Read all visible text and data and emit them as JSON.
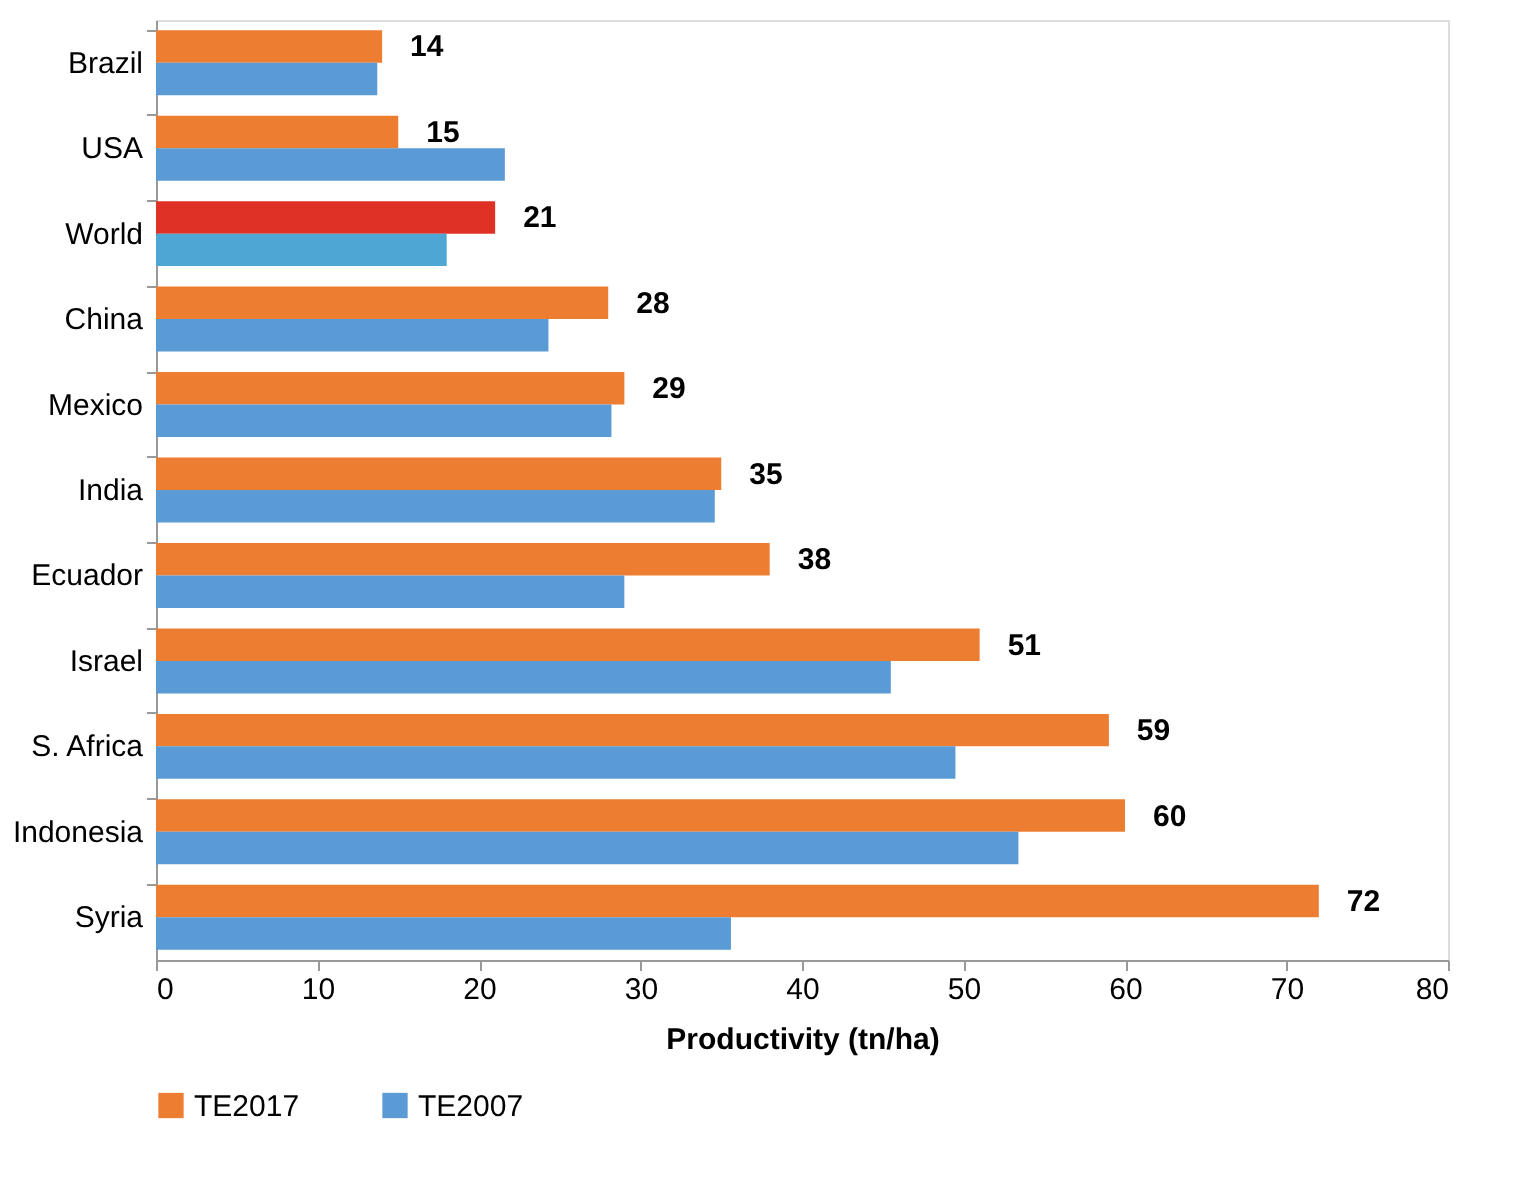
{
  "chart_data": {
    "type": "bar",
    "orientation": "horizontal",
    "xlabel": "Productivity (tn/ha)",
    "categories": [
      "Brazil",
      "USA",
      "World",
      "China",
      "Mexico",
      "India",
      "Ecuador",
      "Israel",
      "S. Africa",
      "Indonesia",
      "Syria"
    ],
    "series": [
      {
        "name": "TE2017",
        "color": "#ed7d31",
        "colors": [
          "#ed7d31",
          "#ed7d31",
          "#e03127",
          "#ed7d31",
          "#ed7d31",
          "#ed7d31",
          "#ed7d31",
          "#ed7d31",
          "#ed7d31",
          "#ed7d31",
          "#ed7d31"
        ],
        "values": [
          14,
          15,
          21,
          28,
          29,
          35,
          38,
          51,
          59,
          60,
          72
        ],
        "data_labels": true
      },
      {
        "name": "TE2007",
        "color": "#5b9bd5",
        "colors": [
          "#5b9bd5",
          "#5b9bd5",
          "#4ea6d4",
          "#5b9bd5",
          "#5b9bd5",
          "#5b9bd5",
          "#5b9bd5",
          "#5b9bd5",
          "#5b9bd5",
          "#5b9bd5",
          "#5b9bd5"
        ],
        "values": [
          13.7,
          21.6,
          18.0,
          24.3,
          28.2,
          34.6,
          29.0,
          45.5,
          49.5,
          53.4,
          35.6
        ]
      }
    ],
    "xlim": [
      0,
      80
    ],
    "xticks": [
      0,
      10,
      20,
      30,
      40,
      50,
      60,
      70,
      80
    ],
    "grid": false,
    "legend": "bottom"
  }
}
